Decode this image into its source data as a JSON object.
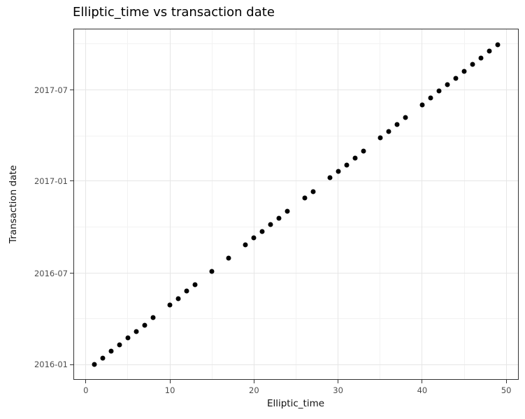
{
  "page": {
    "background_color": "#ffffff"
  },
  "chart_data": {
    "type": "scatter",
    "title": "Elliptic_time vs transaction date",
    "xlabel": "Elliptic_time",
    "ylabel": "Transaction date",
    "legend": "none",
    "grid": "on",
    "point_color": "#000000",
    "panel_border_color": "#333333",
    "grid_major_color": "#e6e6e6",
    "grid_minor_color": "#f2f2f2",
    "tick_color": "#333333",
    "tick_label_color": "#4d4d4d",
    "xlim": [
      -1.4,
      51.4
    ],
    "ylim_dates": [
      "2015-12-03",
      "2017-10-30"
    ],
    "x_ticks": [
      0,
      10,
      20,
      30,
      40,
      50
    ],
    "x_minor_ticks": [
      5,
      15,
      25,
      35,
      45
    ],
    "y_ticks": [
      {
        "label": "2016-01",
        "date": "2016-01-01"
      },
      {
        "label": "2016-07",
        "date": "2016-07-01"
      },
      {
        "label": "2017-01",
        "date": "2017-01-01"
      },
      {
        "label": "2017-07",
        "date": "2017-07-01"
      }
    ],
    "y_minor_dates": [
      "2016-04-01",
      "2016-10-01",
      "2017-04-01",
      "2017-10-01"
    ],
    "points": [
      {
        "x": 1,
        "date": "2016-01-01"
      },
      {
        "x": 2,
        "date": "2016-01-14"
      },
      {
        "x": 3,
        "date": "2016-01-28"
      },
      {
        "x": 4,
        "date": "2016-02-10"
      },
      {
        "x": 5,
        "date": "2016-02-23"
      },
      {
        "x": 6,
        "date": "2016-03-07"
      },
      {
        "x": 7,
        "date": "2016-03-20"
      },
      {
        "x": 8,
        "date": "2016-04-03"
      },
      {
        "x": 10,
        "date": "2016-04-29"
      },
      {
        "x": 11,
        "date": "2016-05-12"
      },
      {
        "x": 12,
        "date": "2016-05-26"
      },
      {
        "x": 13,
        "date": "2016-06-08"
      },
      {
        "x": 15,
        "date": "2016-07-05"
      },
      {
        "x": 17,
        "date": "2016-07-31"
      },
      {
        "x": 19,
        "date": "2016-08-27"
      },
      {
        "x": 20,
        "date": "2016-09-09"
      },
      {
        "x": 21,
        "date": "2016-09-22"
      },
      {
        "x": 22,
        "date": "2016-10-06"
      },
      {
        "x": 23,
        "date": "2016-10-19"
      },
      {
        "x": 24,
        "date": "2016-11-01"
      },
      {
        "x": 26,
        "date": "2016-11-28"
      },
      {
        "x": 27,
        "date": "2016-12-11"
      },
      {
        "x": 29,
        "date": "2017-01-07"
      },
      {
        "x": 30,
        "date": "2017-01-20"
      },
      {
        "x": 31,
        "date": "2017-02-02"
      },
      {
        "x": 32,
        "date": "2017-02-16"
      },
      {
        "x": 33,
        "date": "2017-03-01"
      },
      {
        "x": 35,
        "date": "2017-03-28"
      },
      {
        "x": 36,
        "date": "2017-04-10"
      },
      {
        "x": 37,
        "date": "2017-04-23"
      },
      {
        "x": 38,
        "date": "2017-05-07"
      },
      {
        "x": 40,
        "date": "2017-06-02"
      },
      {
        "x": 41,
        "date": "2017-06-15"
      },
      {
        "x": 42,
        "date": "2017-06-29"
      },
      {
        "x": 43,
        "date": "2017-07-12"
      },
      {
        "x": 44,
        "date": "2017-07-25"
      },
      {
        "x": 45,
        "date": "2017-08-08"
      },
      {
        "x": 46,
        "date": "2017-08-21"
      },
      {
        "x": 47,
        "date": "2017-09-03"
      },
      {
        "x": 48,
        "date": "2017-09-17"
      },
      {
        "x": 49,
        "date": "2017-09-30"
      }
    ]
  }
}
